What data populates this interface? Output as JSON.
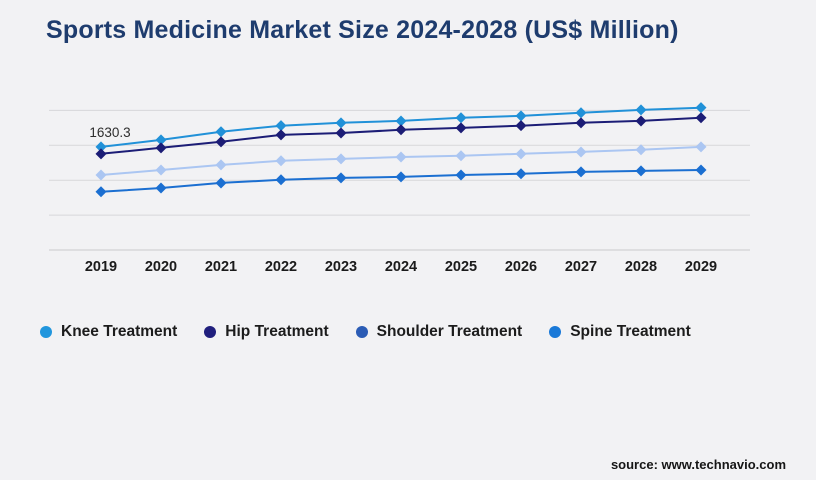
{
  "title": "Sports Medicine Market Size 2024-2028 (US$ Million)",
  "source": "source: www.technavio.com",
  "background_color": "#f2f2f4",
  "title_color": "#1e3c6e",
  "gridline_color": "#d7d7da",
  "axis_line_color": "#c9c9cc",
  "chart_data": {
    "type": "line",
    "marker": "diamond",
    "legend_position": "bottom",
    "grid": "horizontal",
    "categories": [
      "2019",
      "2020",
      "2021",
      "2022",
      "2023",
      "2024",
      "2025",
      "2026",
      "2027",
      "2028",
      "2029"
    ],
    "series": [
      {
        "name": "Knee Treatment",
        "line_color": "#2191d8",
        "legend_color": "#2196dd",
        "values": [
          1630.3,
          1740,
          1870,
          1965,
          2010,
          2040,
          2090,
          2120,
          2170,
          2215,
          2250
        ]
      },
      {
        "name": "Hip Treatment",
        "line_color": "#1c1d76",
        "legend_color": "#201f7d",
        "values": [
          1520,
          1615,
          1710,
          1820,
          1850,
          1900,
          1930,
          1965,
          2010,
          2040,
          2090
        ]
      },
      {
        "name": "Shoulder Treatment",
        "line_color": "#abc6f2",
        "legend_color": "#2b5cb5",
        "values": [
          1185,
          1265,
          1345,
          1410,
          1440,
          1470,
          1490,
          1520,
          1550,
          1585,
          1630
        ]
      },
      {
        "name": "Spine Treatment",
        "line_color": "#1b6fd1",
        "legend_color": "#1a79d8",
        "values": [
          920,
          980,
          1060,
          1110,
          1140,
          1155,
          1185,
          1205,
          1235,
          1250,
          1265
        ]
      }
    ],
    "annotation": {
      "text": "1630.3",
      "series": "Knee Treatment",
      "category": "2019",
      "value": 1630.3
    },
    "xlabel": "",
    "ylabel": "",
    "ylim": [
      0,
      2450
    ],
    "gridlines": 5,
    "y_axis_tick_labels_visible": false
  }
}
